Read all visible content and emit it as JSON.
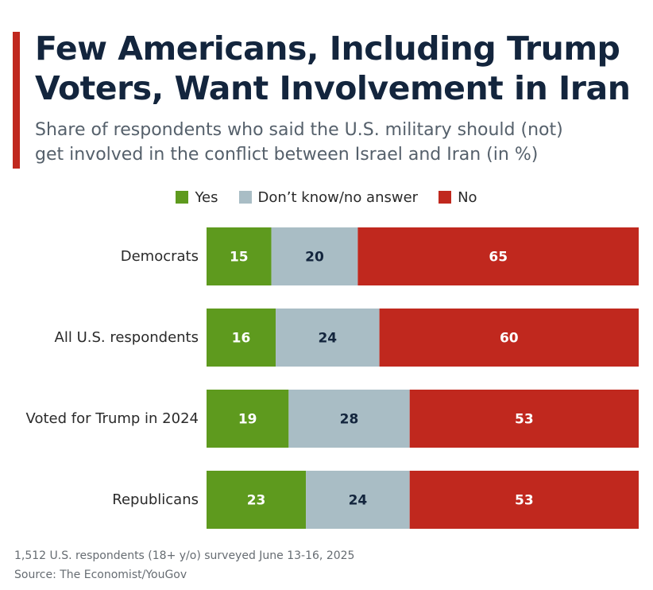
{
  "header": {
    "title_line1": "Few Americans, Including Trump",
    "title_line2": "Voters, Want Involvement in Iran",
    "subtitle_line1": "Share of respondents who said the U.S. military should (not)",
    "subtitle_line2": "get involved in the conflict between Israel and Iran (in %)"
  },
  "legend": {
    "yes": "Yes",
    "dont_know": "Don’t know/no answer",
    "no": "No"
  },
  "colors": {
    "yes": "#5e9a1e",
    "dont_know": "#a9bdc5",
    "no": "#c0281e",
    "accent": "#c0281e",
    "title": "#13253d"
  },
  "chart_data": {
    "type": "bar",
    "orientation": "horizontal",
    "stacked": true,
    "categories": [
      "Democrats",
      "All U.S. respondents",
      "Voted for Trump in 2024",
      "Republicans"
    ],
    "series": [
      {
        "name": "Yes",
        "values": [
          15,
          16,
          19,
          23
        ]
      },
      {
        "name": "Don’t know/no answer",
        "values": [
          20,
          24,
          28,
          24
        ]
      },
      {
        "name": "No",
        "values": [
          65,
          60,
          53,
          53
        ]
      }
    ],
    "xlim": [
      0,
      100
    ],
    "grid": false,
    "legend_position": "top-center"
  },
  "footer": {
    "note": "1,512 U.S. respondents (18+ y/o) surveyed June 13-16, 2025",
    "source": "Source: The Economist/YouGov"
  }
}
